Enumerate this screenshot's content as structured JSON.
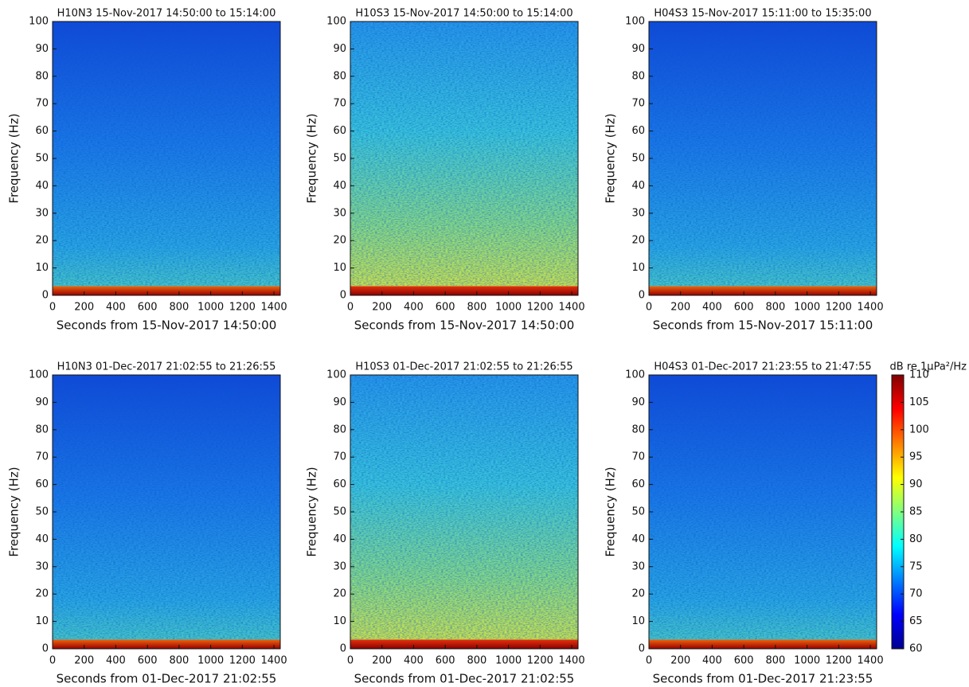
{
  "chart_data": [
    {
      "type": "heatmap",
      "title": "H10N3 15-Nov-2017 14:50:00 to 15:14:00",
      "xlabel": "Seconds from 15-Nov-2017 14:50:00",
      "ylabel": "Frequency (Hz)",
      "xlim": [
        0,
        1440
      ],
      "xticks": [
        0,
        200,
        400,
        600,
        800,
        1000,
        1200,
        1400
      ],
      "ylim": [
        0,
        100
      ],
      "yticks": [
        0,
        10,
        20,
        30,
        40,
        50,
        60,
        70,
        80,
        90,
        100
      ],
      "colormap": "jet"
    },
    {
      "type": "heatmap",
      "title": "H10S3 15-Nov-2017 14:50:00 to 15:14:00",
      "xlabel": "Seconds from 15-Nov-2017 14:50:00",
      "ylabel": "Frequency (Hz)",
      "xlim": [
        0,
        1440
      ],
      "xticks": [
        0,
        200,
        400,
        600,
        800,
        1000,
        1200,
        1400
      ],
      "ylim": [
        0,
        100
      ],
      "yticks": [
        0,
        10,
        20,
        30,
        40,
        50,
        60,
        70,
        80,
        90,
        100
      ],
      "colormap": "jet"
    },
    {
      "type": "heatmap",
      "title": "H04S3 15-Nov-2017 15:11:00 to 15:35:00",
      "xlabel": "Seconds from 15-Nov-2017 15:11:00",
      "ylabel": "Frequency (Hz)",
      "xlim": [
        0,
        1440
      ],
      "xticks": [
        0,
        200,
        400,
        600,
        800,
        1000,
        1200,
        1400
      ],
      "ylim": [
        0,
        100
      ],
      "yticks": [
        0,
        10,
        20,
        30,
        40,
        50,
        60,
        70,
        80,
        90,
        100
      ],
      "colormap": "jet"
    },
    {
      "type": "heatmap",
      "title": "H10N3 01-Dec-2017 21:02:55 to 21:26:55",
      "xlabel": "Seconds from 01-Dec-2017 21:02:55",
      "ylabel": "Frequency (Hz)",
      "xlim": [
        0,
        1440
      ],
      "xticks": [
        0,
        200,
        400,
        600,
        800,
        1000,
        1200,
        1400
      ],
      "ylim": [
        0,
        100
      ],
      "yticks": [
        0,
        10,
        20,
        30,
        40,
        50,
        60,
        70,
        80,
        90,
        100
      ],
      "colormap": "jet"
    },
    {
      "type": "heatmap",
      "title": "H10S3 01-Dec-2017 21:02:55 to 21:26:55",
      "xlabel": "Seconds from 01-Dec-2017 21:02:55",
      "ylabel": "Frequency (Hz)",
      "xlim": [
        0,
        1440
      ],
      "xticks": [
        0,
        200,
        400,
        600,
        800,
        1000,
        1200,
        1400
      ],
      "ylim": [
        0,
        100
      ],
      "yticks": [
        0,
        10,
        20,
        30,
        40,
        50,
        60,
        70,
        80,
        90,
        100
      ],
      "colormap": "jet"
    },
    {
      "type": "heatmap",
      "title": "H04S3 01-Dec-2017 21:23:55 to 21:47:55",
      "xlabel": "Seconds from 01-Dec-2017 21:23:55",
      "ylabel": "Frequency (Hz)",
      "xlim": [
        0,
        1440
      ],
      "xticks": [
        0,
        200,
        400,
        600,
        800,
        1000,
        1200,
        1400
      ],
      "ylim": [
        0,
        100
      ],
      "yticks": [
        0,
        10,
        20,
        30,
        40,
        50,
        60,
        70,
        80,
        90,
        100
      ],
      "colormap": "jet",
      "colorbar": {
        "label": "dB re 1μPa²/Hz",
        "clim": [
          60,
          110
        ],
        "ticks": [
          60,
          65,
          70,
          75,
          80,
          85,
          90,
          95,
          100,
          105,
          110
        ]
      }
    }
  ]
}
